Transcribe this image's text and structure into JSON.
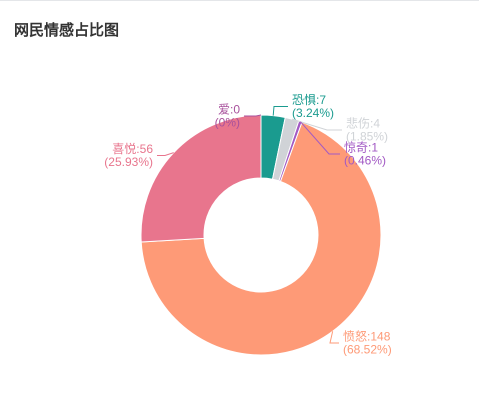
{
  "chart_data": {
    "type": "pie",
    "donut": true,
    "title": "网民情感占比图",
    "categories": [
      "恐惧",
      "悲伤",
      "惊奇",
      "愤怒",
      "喜悦",
      "爱"
    ],
    "values": [
      7,
      4,
      1,
      148,
      56,
      0
    ],
    "percentages": [
      "3.24%",
      "1.85%",
      "0.46%",
      "68.52%",
      "25.93%",
      "0%"
    ],
    "colors": [
      "#1a9b8f",
      "#d0d3d7",
      "#a259c4",
      "#fe9a77",
      "#e8758d",
      "#a8519c"
    ]
  }
}
